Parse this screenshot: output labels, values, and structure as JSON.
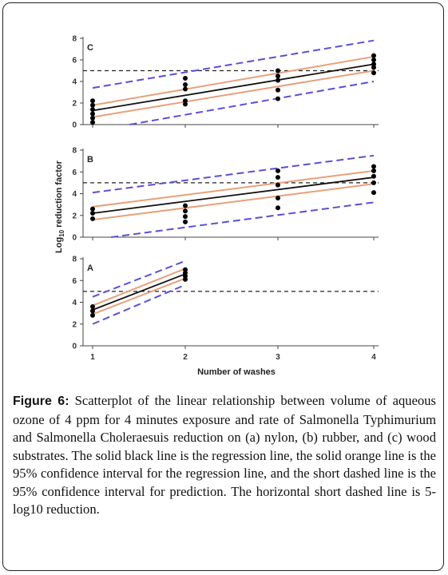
{
  "chart_data": {
    "type": "scatter",
    "xlabel": "Number of washes",
    "ylabel_prefix": "Log",
    "ylabel_sub": "10",
    "ylabel_suffix": " reduction factor",
    "x_ticks": [
      1,
      2,
      3,
      4
    ],
    "y_ticks": [
      0,
      2,
      4,
      6,
      8
    ],
    "threshold": 5,
    "colors": {
      "regression": "#111111",
      "confidence": "#e8a07a",
      "prediction": "#5a4fd8",
      "points": "#000000",
      "threshold": "#222222"
    },
    "panels": [
      {
        "label": "C",
        "xlim": [
          1,
          4
        ],
        "ylim": [
          0,
          8
        ],
        "points": [
          [
            1,
            0.2
          ],
          [
            1,
            0.6
          ],
          [
            1,
            1.0
          ],
          [
            1,
            1.4
          ],
          [
            1,
            1.8
          ],
          [
            1,
            2.2
          ],
          [
            2,
            1.9
          ],
          [
            2,
            2.2
          ],
          [
            2,
            3.3
          ],
          [
            2,
            3.7
          ],
          [
            2,
            4.3
          ],
          [
            3,
            2.4
          ],
          [
            3,
            3.2
          ],
          [
            3,
            4.1
          ],
          [
            3,
            4.5
          ],
          [
            3,
            5.0
          ],
          [
            4,
            4.8
          ],
          [
            4,
            5.3
          ],
          [
            4,
            5.6
          ],
          [
            4,
            6.0
          ],
          [
            4,
            6.4
          ]
        ],
        "regression": [
          [
            1,
            1.3
          ],
          [
            4,
            5.6
          ]
        ],
        "ci_upper": [
          [
            1,
            1.8
          ],
          [
            4,
            6.3
          ]
        ],
        "ci_lower": [
          [
            1,
            0.7
          ],
          [
            4,
            5.0
          ]
        ],
        "pi_upper": [
          [
            1,
            3.4
          ],
          [
            4,
            7.8
          ]
        ],
        "pi_lower": [
          [
            1.4,
            0.0
          ],
          [
            4,
            4.0
          ]
        ]
      },
      {
        "label": "B",
        "xlim": [
          1,
          4
        ],
        "ylim": [
          0,
          8
        ],
        "points": [
          [
            1,
            1.7
          ],
          [
            1,
            2.2
          ],
          [
            1,
            2.6
          ],
          [
            2,
            1.4
          ],
          [
            2,
            1.9
          ],
          [
            2,
            2.4
          ],
          [
            2,
            2.9
          ],
          [
            3,
            2.7
          ],
          [
            3,
            3.6
          ],
          [
            3,
            4.8
          ],
          [
            3,
            5.5
          ],
          [
            3,
            6.1
          ],
          [
            4,
            4.1
          ],
          [
            4,
            5.0
          ],
          [
            4,
            5.6
          ],
          [
            4,
            6.1
          ],
          [
            4,
            6.5
          ]
        ],
        "regression": [
          [
            1,
            2.2
          ],
          [
            4,
            5.5
          ]
        ],
        "ci_upper": [
          [
            1,
            2.8
          ],
          [
            4,
            6.1
          ]
        ],
        "ci_lower": [
          [
            1,
            1.6
          ],
          [
            4,
            4.9
          ]
        ],
        "pi_upper": [
          [
            1,
            4.1
          ],
          [
            4,
            7.5
          ]
        ],
        "pi_lower": [
          [
            1.2,
            0.0
          ],
          [
            4,
            3.2
          ]
        ]
      },
      {
        "label": "A",
        "xlim": [
          1,
          4
        ],
        "ylim": [
          0,
          8
        ],
        "points": [
          [
            1,
            2.8
          ],
          [
            1,
            3.2
          ],
          [
            1,
            3.6
          ],
          [
            2,
            6.1
          ],
          [
            2,
            6.4
          ],
          [
            2,
            6.7
          ],
          [
            2,
            7.0
          ]
        ],
        "regression": [
          [
            1,
            3.3
          ],
          [
            2,
            6.6
          ]
        ],
        "ci_upper": [
          [
            1,
            3.7
          ],
          [
            2,
            7.1
          ]
        ],
        "ci_lower": [
          [
            1,
            2.9
          ],
          [
            2,
            6.2
          ]
        ],
        "pi_upper": [
          [
            1,
            4.5
          ],
          [
            2,
            7.8
          ]
        ],
        "pi_lower": [
          [
            1,
            2.0
          ],
          [
            2,
            5.6
          ]
        ]
      }
    ]
  },
  "caption": {
    "label": "Figure 6:",
    "text": " Scatterplot of the linear relationship between volume of aqueous ozone of 4 ppm for 4 minutes exposure and rate of Salmonella Typhimurium and Salmonella Choleraesuis reduction on (a) nylon, (b) rubber, and (c) wood substrates. The solid black line is the regression line, the solid orange line is the 95% confidence interval for the regression line, and the short dashed line is the 95% confidence interval for prediction. The horizontal short dashed line is 5-log10 reduction."
  }
}
